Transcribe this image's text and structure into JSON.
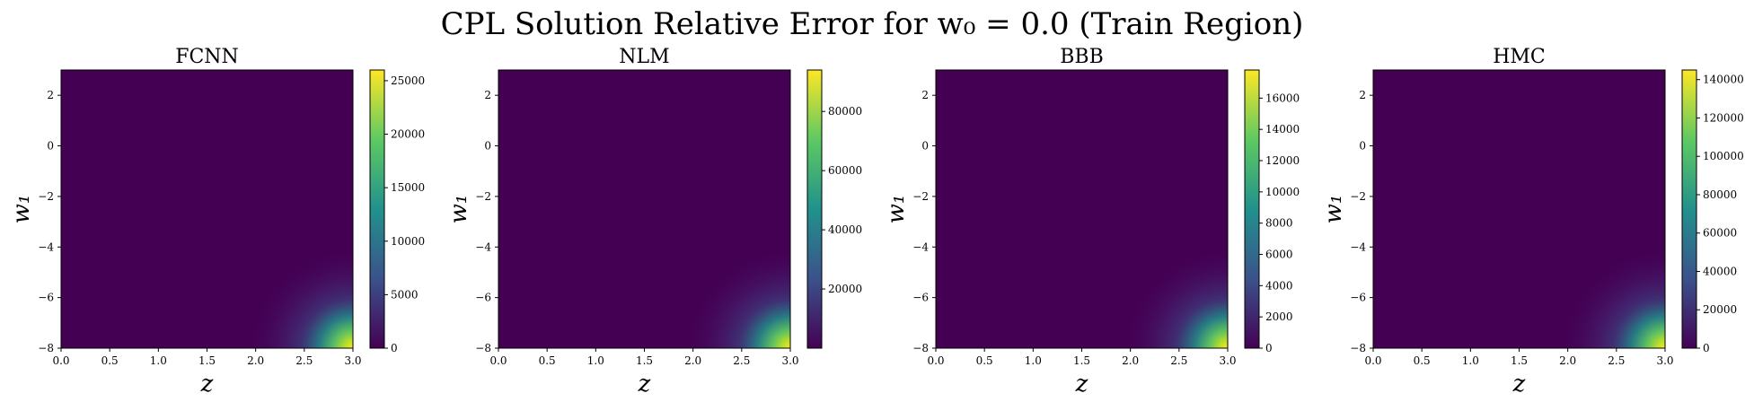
{
  "figure": {
    "title": "CPL Solution Relative Error for w₀ = 0.0 (Train Region)"
  },
  "colormap": [
    "#440154",
    "#3b528b",
    "#21918c",
    "#5ec962",
    "#fde725"
  ],
  "chart_data": [
    {
      "type": "heatmap",
      "title": "FCNN",
      "xlabel": "z",
      "ylabel": "w₁",
      "xlim": [
        0.0,
        3.0
      ],
      "ylim": [
        -8,
        3
      ],
      "xticks": [
        "0.0",
        "0.5",
        "1.0",
        "1.5",
        "2.0",
        "2.5",
        "3.0"
      ],
      "yticks": [
        "2",
        "0",
        "−2",
        "−4",
        "−6",
        "−8"
      ],
      "colorbar": {
        "min": 0,
        "max": 26000,
        "ticks": [
          "0",
          "5000",
          "10000",
          "15000",
          "20000",
          "25000"
        ]
      },
      "hotspot": {
        "z": 3.0,
        "w1": -8,
        "value": 26000
      }
    },
    {
      "type": "heatmap",
      "title": "NLM",
      "xlabel": "z",
      "ylabel": "w₁",
      "xlim": [
        0.0,
        3.0
      ],
      "ylim": [
        -8,
        3
      ],
      "xticks": [
        "0.0",
        "0.5",
        "1.0",
        "1.5",
        "2.0",
        "2.5",
        "3.0"
      ],
      "yticks": [
        "2",
        "0",
        "−2",
        "−4",
        "−6",
        "−8"
      ],
      "colorbar": {
        "min": 0,
        "max": 94000,
        "ticks": [
          "20000",
          "40000",
          "60000",
          "80000"
        ]
      },
      "hotspot": {
        "z": 3.0,
        "w1": -8,
        "value": 94000
      }
    },
    {
      "type": "heatmap",
      "title": "BBB",
      "xlabel": "z",
      "ylabel": "w₁",
      "xlim": [
        0.0,
        3.0
      ],
      "ylim": [
        -8,
        3
      ],
      "xticks": [
        "0.0",
        "0.5",
        "1.0",
        "1.5",
        "2.0",
        "2.5",
        "3.0"
      ],
      "yticks": [
        "2",
        "0",
        "−2",
        "−4",
        "−6",
        "−8"
      ],
      "colorbar": {
        "min": 0,
        "max": 17800,
        "ticks": [
          "0",
          "2000",
          "4000",
          "6000",
          "8000",
          "10000",
          "12000",
          "14000",
          "16000"
        ]
      },
      "hotspot": {
        "z": 3.0,
        "w1": -8,
        "value": 17800
      }
    },
    {
      "type": "heatmap",
      "title": "HMC",
      "xlabel": "z",
      "ylabel": "w₁",
      "xlim": [
        0.0,
        3.0
      ],
      "ylim": [
        -8,
        3
      ],
      "xticks": [
        "0.0",
        "0.5",
        "1.0",
        "1.5",
        "2.0",
        "2.5",
        "3.0"
      ],
      "yticks": [
        "2",
        "0",
        "−2",
        "−4",
        "−6",
        "−8"
      ],
      "colorbar": {
        "min": 0,
        "max": 145000,
        "ticks": [
          "0",
          "20000",
          "40000",
          "60000",
          "80000",
          "100000",
          "120000",
          "140000"
        ]
      },
      "hotspot": {
        "z": 3.0,
        "w1": -8,
        "value": 145000
      }
    }
  ]
}
